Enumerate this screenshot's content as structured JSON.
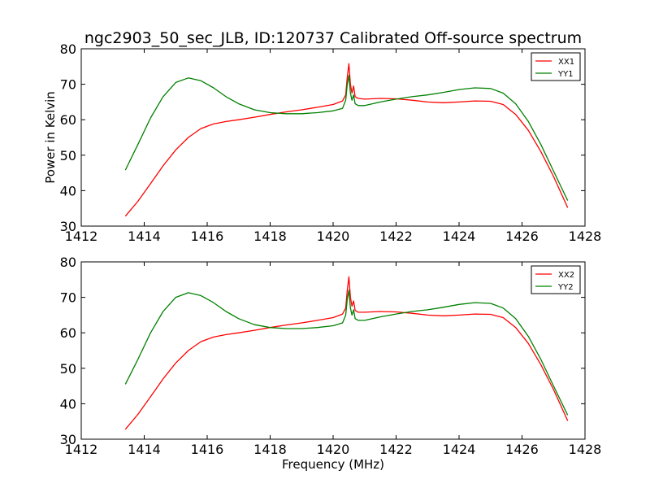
{
  "figure": {
    "title": "ngc2903_50_sec_JLB, ID:120737 Calibrated Off-source spectrum",
    "xlabel": "Frequency (MHz)"
  },
  "chart_data": [
    {
      "type": "line",
      "ylabel": "Power in Kelvin",
      "xlim": [
        1412,
        1428
      ],
      "ylim": [
        30,
        80
      ],
      "xticks": [
        "1412",
        "1414",
        "1416",
        "1418",
        "1420",
        "1422",
        "1424",
        "1426",
        "1428"
      ],
      "yticks": [
        "30",
        "40",
        "50",
        "60",
        "70",
        "80"
      ],
      "legend_position": "top-right",
      "series": [
        {
          "name": "XX1",
          "color": "#ff0000",
          "x": [
            1413.4,
            1413.8,
            1414.2,
            1414.6,
            1415.0,
            1415.4,
            1415.8,
            1416.2,
            1416.6,
            1417.0,
            1417.5,
            1418.0,
            1418.5,
            1419.0,
            1419.5,
            1420.0,
            1420.3,
            1420.4,
            1420.45,
            1420.5,
            1420.55,
            1420.6,
            1420.65,
            1420.7,
            1420.8,
            1421.0,
            1421.5,
            1422.0,
            1422.5,
            1423.0,
            1423.5,
            1424.0,
            1424.5,
            1425.0,
            1425.4,
            1425.8,
            1426.2,
            1426.6,
            1427.0,
            1427.45
          ],
          "values": [
            32.8,
            37.0,
            42.0,
            47.0,
            51.5,
            55.0,
            57.5,
            58.8,
            59.5,
            60.0,
            60.7,
            61.5,
            62.2,
            62.8,
            63.5,
            64.3,
            65.3,
            67.0,
            72.0,
            75.8,
            70.0,
            67.5,
            69.5,
            66.5,
            66.0,
            65.8,
            66.0,
            65.9,
            65.5,
            65.0,
            64.8,
            65.0,
            65.3,
            65.2,
            64.3,
            61.5,
            57.0,
            51.0,
            44.0,
            35.2
          ]
        },
        {
          "name": "YY1",
          "color": "#008000",
          "x": [
            1413.4,
            1413.8,
            1414.2,
            1414.6,
            1415.0,
            1415.4,
            1415.8,
            1416.2,
            1416.6,
            1417.0,
            1417.5,
            1418.0,
            1418.5,
            1419.0,
            1419.5,
            1420.0,
            1420.3,
            1420.4,
            1420.45,
            1420.5,
            1420.55,
            1420.6,
            1420.65,
            1420.7,
            1420.8,
            1421.0,
            1421.5,
            1422.0,
            1422.5,
            1423.0,
            1423.5,
            1424.0,
            1424.5,
            1425.0,
            1425.4,
            1425.8,
            1426.2,
            1426.6,
            1427.0,
            1427.45
          ],
          "values": [
            45.8,
            53.0,
            60.5,
            66.5,
            70.5,
            71.8,
            71.0,
            69.0,
            66.5,
            64.5,
            62.8,
            62.0,
            61.7,
            61.7,
            62.0,
            62.5,
            63.2,
            65.5,
            70.0,
            72.5,
            67.5,
            65.5,
            67.0,
            64.5,
            64.0,
            64.0,
            65.0,
            65.8,
            66.5,
            67.0,
            67.7,
            68.5,
            69.0,
            68.8,
            67.5,
            64.5,
            59.5,
            53.0,
            45.5,
            37.2
          ]
        }
      ]
    },
    {
      "type": "line",
      "ylabel": "",
      "xlim": [
        1412,
        1428
      ],
      "ylim": [
        30,
        80
      ],
      "xticks": [
        "1412",
        "1414",
        "1416",
        "1418",
        "1420",
        "1422",
        "1424",
        "1426",
        "1428"
      ],
      "yticks": [
        "30",
        "40",
        "50",
        "60",
        "70",
        "80"
      ],
      "legend_position": "top-right",
      "series": [
        {
          "name": "XX2",
          "color": "#ff0000",
          "x": [
            1413.4,
            1413.8,
            1414.2,
            1414.6,
            1415.0,
            1415.4,
            1415.8,
            1416.2,
            1416.6,
            1417.0,
            1417.5,
            1418.0,
            1418.5,
            1419.0,
            1419.5,
            1420.0,
            1420.3,
            1420.4,
            1420.45,
            1420.5,
            1420.55,
            1420.6,
            1420.65,
            1420.7,
            1420.8,
            1421.0,
            1421.5,
            1422.0,
            1422.5,
            1423.0,
            1423.5,
            1424.0,
            1424.5,
            1425.0,
            1425.4,
            1425.8,
            1426.2,
            1426.6,
            1427.0,
            1427.45
          ],
          "values": [
            32.8,
            37.0,
            42.0,
            47.0,
            51.5,
            55.0,
            57.5,
            58.8,
            59.5,
            60.0,
            60.7,
            61.5,
            62.2,
            62.8,
            63.5,
            64.3,
            65.3,
            67.0,
            72.0,
            75.8,
            70.0,
            67.5,
            69.0,
            66.3,
            65.8,
            65.8,
            66.0,
            65.9,
            65.5,
            65.0,
            64.8,
            65.0,
            65.3,
            65.2,
            64.3,
            61.5,
            57.0,
            51.0,
            44.0,
            35.2
          ]
        },
        {
          "name": "YY2",
          "color": "#008000",
          "x": [
            1413.4,
            1413.8,
            1414.2,
            1414.6,
            1415.0,
            1415.4,
            1415.8,
            1416.2,
            1416.6,
            1417.0,
            1417.5,
            1418.0,
            1418.5,
            1419.0,
            1419.5,
            1420.0,
            1420.3,
            1420.4,
            1420.45,
            1420.5,
            1420.55,
            1420.6,
            1420.65,
            1420.7,
            1420.8,
            1421.0,
            1421.5,
            1422.0,
            1422.5,
            1423.0,
            1423.5,
            1424.0,
            1424.5,
            1425.0,
            1425.4,
            1425.8,
            1426.2,
            1426.6,
            1427.0,
            1427.45
          ],
          "values": [
            45.5,
            52.5,
            60.0,
            66.0,
            70.0,
            71.3,
            70.5,
            68.5,
            66.0,
            64.0,
            62.3,
            61.5,
            61.2,
            61.2,
            61.5,
            62.0,
            62.8,
            65.0,
            69.5,
            72.0,
            67.0,
            65.0,
            66.5,
            64.0,
            63.5,
            63.5,
            64.5,
            65.3,
            66.0,
            66.5,
            67.2,
            68.0,
            68.5,
            68.3,
            67.0,
            64.0,
            59.0,
            52.5,
            45.0,
            36.8
          ]
        }
      ]
    }
  ]
}
